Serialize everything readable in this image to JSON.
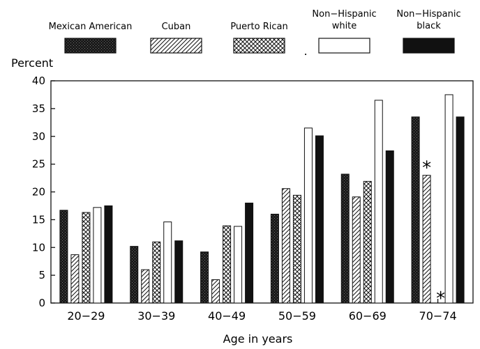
{
  "chart_data": {
    "type": "bar",
    "title": "",
    "xlabel": "Age in years",
    "ylabel": "Percent",
    "ylim": [
      0,
      40
    ],
    "yticks": [
      0,
      5,
      10,
      15,
      20,
      25,
      30,
      35,
      40
    ],
    "grid": false,
    "legend_position": "top",
    "categories": [
      "20−29",
      "30−39",
      "40−49",
      "50−59",
      "60−69",
      "70−74"
    ],
    "series": [
      {
        "name": "Mexican American",
        "legend_lines": [
          "Mexican American"
        ],
        "pattern": "speckled-dark",
        "values": [
          16.7,
          10.2,
          9.2,
          16.0,
          23.2,
          33.5
        ]
      },
      {
        "name": "Cuban",
        "legend_lines": [
          "Cuban"
        ],
        "pattern": "diagonal-hatch",
        "values": [
          8.7,
          6.0,
          4.2,
          20.6,
          19.1,
          23.0
        ]
      },
      {
        "name": "Puerto Rican",
        "legend_lines": [
          "Puerto Rican"
        ],
        "pattern": "cross-hatch",
        "values": [
          16.3,
          11.0,
          13.9,
          19.4,
          21.9,
          null
        ]
      },
      {
        "name": "Non−Hispanic white",
        "legend_lines": [
          "Non−Hispanic",
          "white"
        ],
        "pattern": "white",
        "values": [
          17.2,
          14.6,
          13.8,
          31.5,
          36.5,
          37.5
        ]
      },
      {
        "name": "Non−Hispanic black",
        "legend_lines": [
          "Non−Hispanic",
          "black"
        ],
        "pattern": "solid-black",
        "values": [
          17.5,
          11.2,
          18.0,
          30.1,
          27.4,
          33.5
        ]
      }
    ],
    "annotations": [
      {
        "text": "*",
        "category": "70−74",
        "series": "Cuban",
        "y": 24.5
      },
      {
        "text": "*",
        "category": "70−74",
        "series": "Puerto Rican",
        "y": 1.0
      }
    ],
    "legend_separator": "."
  },
  "colors": {
    "black": "#111111",
    "dark_speckle": "#2a2a2a",
    "white": "#ffffff"
  }
}
